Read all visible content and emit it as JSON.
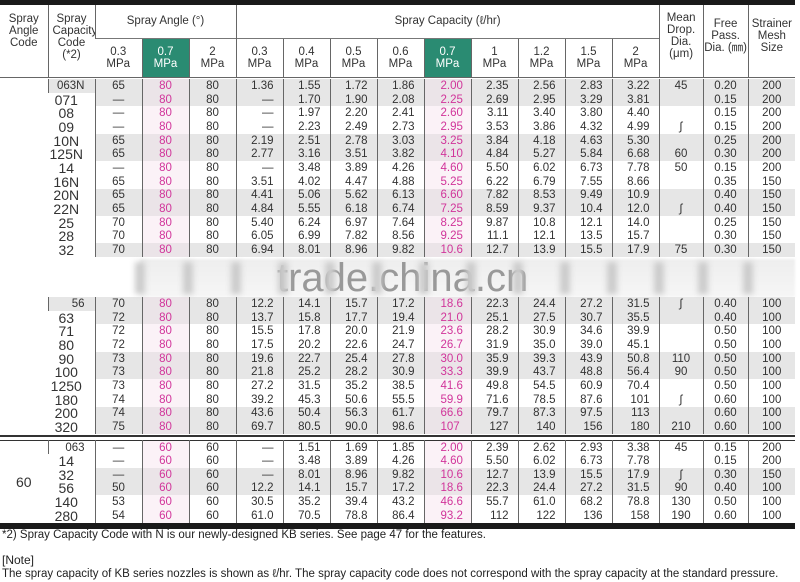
{
  "header": {
    "angle_code": "Spray Angle Code",
    "capacity_code": "Spray Capacity Code (*2)",
    "spray_angle": "Spray Angle (°)",
    "spray_capacity": "Spray Capacity (ℓ/hr)",
    "mean_drop": "Mean Drop. Dia. (μm)",
    "free_pass": "Free Pass. Dia. (㎜)",
    "strainer": "Strainer Mesh Size",
    "angle_pressures": [
      "0.3 MPa",
      "0.7 MPa",
      "2 MPa"
    ],
    "capacity_pressures": [
      "0.3 MPa",
      "0.4 MPa",
      "0.5 MPa",
      "0.6 MPa",
      "0.7 MPa",
      "1 MPa",
      "1.2 MPa",
      "1.5 MPa",
      "2 MPa"
    ],
    "highlight_color": "#2a8b72"
  },
  "accent_color": "#d1349a",
  "groups": [
    {
      "angle_code": "",
      "rows": [
        [
          "063N",
          "65",
          "80",
          "80",
          "1.36",
          "1.55",
          "1.72",
          "1.86",
          "2.00",
          "2.35",
          "2.56",
          "2.83",
          "3.22",
          "45",
          "0.20",
          "200"
        ],
        [
          "071",
          "—",
          "80",
          "80",
          "—",
          "1.70",
          "1.90",
          "2.08",
          "2.25",
          "2.69",
          "2.95",
          "3.29",
          "3.81",
          "",
          "0.15",
          "200"
        ],
        [
          "08",
          "—",
          "80",
          "80",
          "—",
          "1.97",
          "2.20",
          "2.41",
          "2.60",
          "3.11",
          "3.40",
          "3.80",
          "4.40",
          "",
          "0.15",
          "200"
        ],
        [
          "09",
          "—",
          "80",
          "80",
          "—",
          "2.23",
          "2.49",
          "2.73",
          "2.95",
          "3.53",
          "3.86",
          "4.32",
          "4.99",
          "∫",
          "0.15",
          "200"
        ],
        [
          "10N",
          "65",
          "80",
          "80",
          "2.19",
          "2.51",
          "2.78",
          "3.03",
          "3.25",
          "3.84",
          "4.18",
          "4.63",
          "5.30",
          "",
          "0.25",
          "200"
        ],
        [
          "125N",
          "65",
          "80",
          "80",
          "2.77",
          "3.16",
          "3.51",
          "3.82",
          "4.10",
          "4.84",
          "5.27",
          "5.84",
          "6.68",
          "60",
          "0.30",
          "200"
        ],
        [
          "14",
          "—",
          "80",
          "80",
          "—",
          "3.48",
          "3.89",
          "4.26",
          "4.60",
          "5.50",
          "6.02",
          "6.73",
          "7.78",
          "50",
          "0.15",
          "200"
        ],
        [
          "16N",
          "65",
          "80",
          "80",
          "3.51",
          "4.02",
          "4.47",
          "4.88",
          "5.25",
          "6.22",
          "6.79",
          "7.55",
          "8.66",
          "",
          "0.35",
          "150"
        ],
        [
          "20N",
          "65",
          "80",
          "80",
          "4.41",
          "5.06",
          "5.62",
          "6.13",
          "6.60",
          "7.82",
          "8.53",
          "9.49",
          "10.9",
          "",
          "0.40",
          "150"
        ],
        [
          "22N",
          "65",
          "80",
          "80",
          "4.84",
          "5.55",
          "6.18",
          "6.74",
          "7.25",
          "8.59",
          "9.37",
          "10.4",
          "12.0",
          "∫",
          "0.40",
          "150"
        ],
        [
          "25",
          "70",
          "80",
          "80",
          "5.40",
          "6.24",
          "6.97",
          "7.64",
          "8.25",
          "9.87",
          "10.8",
          "12.1",
          "14.0",
          "",
          "0.25",
          "150"
        ],
        [
          "28",
          "70",
          "80",
          "80",
          "6.05",
          "6.99",
          "7.82",
          "8.56",
          "9.25",
          "11.1",
          "12.1",
          "13.5",
          "15.7",
          "",
          "0.30",
          "150"
        ],
        [
          "32",
          "70",
          "80",
          "80",
          "6.94",
          "8.01",
          "8.96",
          "9.82",
          "10.6",
          "12.7",
          "13.9",
          "15.5",
          "17.9",
          "75",
          "0.30",
          "150"
        ]
      ],
      "shaded": [
        0,
        1,
        4,
        5,
        8,
        9,
        12
      ]
    },
    {
      "angle_code": "",
      "rows": [
        [
          "56",
          "70",
          "80",
          "80",
          "12.2",
          "14.1",
          "15.7",
          "17.2",
          "18.6",
          "22.3",
          "24.4",
          "27.2",
          "31.5",
          "∫",
          "0.40",
          "100"
        ],
        [
          "63",
          "72",
          "80",
          "80",
          "13.7",
          "15.8",
          "17.7",
          "19.4",
          "21.0",
          "25.1",
          "27.5",
          "30.7",
          "35.5",
          "",
          "0.40",
          "100"
        ],
        [
          "71",
          "72",
          "80",
          "80",
          "15.5",
          "17.8",
          "20.0",
          "21.9",
          "23.6",
          "28.2",
          "30.9",
          "34.6",
          "39.9",
          "",
          "0.50",
          "100"
        ],
        [
          "80",
          "72",
          "80",
          "80",
          "17.5",
          "20.2",
          "22.6",
          "24.7",
          "26.7",
          "31.9",
          "35.0",
          "39.0",
          "45.1",
          "",
          "0.50",
          "100"
        ],
        [
          "90",
          "73",
          "80",
          "80",
          "19.6",
          "22.7",
          "25.4",
          "27.8",
          "30.0",
          "35.9",
          "39.3",
          "43.9",
          "50.8",
          "110",
          "0.50",
          "100"
        ],
        [
          "100",
          "73",
          "80",
          "80",
          "21.8",
          "25.2",
          "28.2",
          "30.9",
          "33.3",
          "39.9",
          "43.7",
          "48.8",
          "56.4",
          "90",
          "0.50",
          "100"
        ],
        [
          "1250",
          "73",
          "80",
          "80",
          "27.2",
          "31.5",
          "35.2",
          "38.5",
          "41.6",
          "49.8",
          "54.5",
          "60.9",
          "70.4",
          "",
          "0.50",
          "100"
        ],
        [
          "180",
          "74",
          "80",
          "80",
          "39.2",
          "45.3",
          "50.6",
          "55.5",
          "59.9",
          "71.6",
          "78.5",
          "87.6",
          "101",
          "∫",
          "0.60",
          "100"
        ],
        [
          "200",
          "74",
          "80",
          "80",
          "43.6",
          "50.4",
          "56.3",
          "61.7",
          "66.6",
          "79.7",
          "87.3",
          "97.5",
          "113",
          "",
          "0.60",
          "100"
        ],
        [
          "320",
          "75",
          "80",
          "80",
          "69.7",
          "80.5",
          "90.0",
          "98.6",
          "107",
          "127",
          "140",
          "156",
          "180",
          "210",
          "0.60",
          "100"
        ]
      ],
      "shaded": [
        0,
        1,
        4,
        5,
        8,
        9
      ]
    },
    {
      "angle_code": "60",
      "rows": [
        [
          "063",
          "—",
          "60",
          "60",
          "—",
          "1.51",
          "1.69",
          "1.85",
          "2.00",
          "2.39",
          "2.62",
          "2.93",
          "3.38",
          "45",
          "0.15",
          "200"
        ],
        [
          "14",
          "—",
          "60",
          "60",
          "—",
          "3.48",
          "3.89",
          "4.26",
          "4.60",
          "5.50",
          "6.02",
          "6.73",
          "7.78",
          "",
          "0.15",
          "200"
        ],
        [
          "32",
          "—",
          "60",
          "60",
          "—",
          "8.01",
          "8.96",
          "9.82",
          "10.6",
          "12.7",
          "13.9",
          "15.5",
          "17.9",
          "∫",
          "0.30",
          "150"
        ],
        [
          "56",
          "50",
          "60",
          "60",
          "12.2",
          "14.1",
          "15.7",
          "17.2",
          "18.6",
          "22.3",
          "24.4",
          "27.2",
          "31.5",
          "90",
          "0.40",
          "100"
        ],
        [
          "140",
          "53",
          "60",
          "60",
          "30.5",
          "35.2",
          "39.4",
          "43.2",
          "46.6",
          "55.7",
          "61.0",
          "68.2",
          "78.8",
          "130",
          "0.50",
          "100"
        ],
        [
          "280",
          "54",
          "60",
          "60",
          "61.0",
          "70.5",
          "78.8",
          "86.4",
          "93.2",
          "112",
          "122",
          "136",
          "158",
          "190",
          "0.60",
          "100"
        ]
      ],
      "shaded": [
        2,
        3
      ]
    }
  ],
  "watermark": "trade.china.cn",
  "footnote": "*2) Spray Capacity Code with N is our newly-designed KB series. See page 47 for the features.",
  "note_title": "[Note]",
  "note_text": "The spray capacity of KB series nozzles is shown as  ℓ/hr. The spray capacity code does not correspond with the spray capacity at the standard pressure."
}
